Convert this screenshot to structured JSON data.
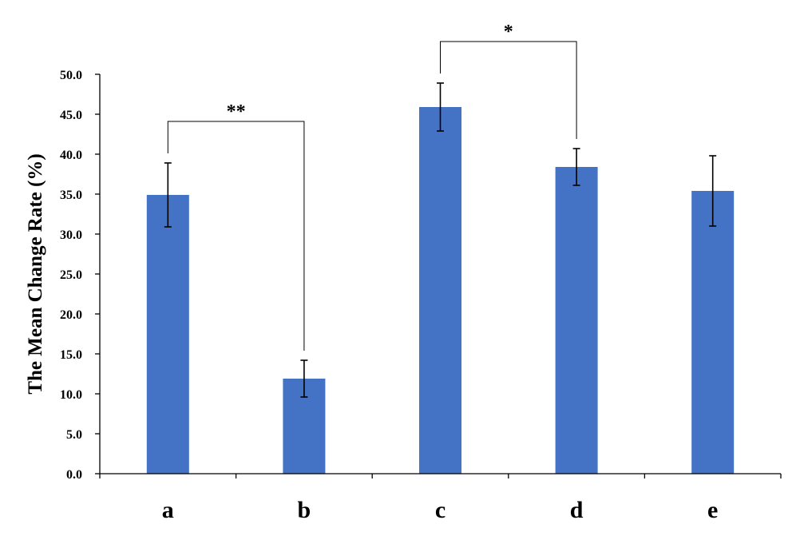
{
  "chart_data": {
    "type": "bar",
    "title": "",
    "xlabel": "",
    "ylabel": "The Mean Change Rate (%)",
    "categories": [
      "a",
      "b",
      "c",
      "d",
      "e"
    ],
    "values": [
      34.9,
      11.9,
      45.9,
      38.4,
      35.4
    ],
    "errors": [
      4.0,
      2.3,
      3.0,
      2.3,
      4.4
    ],
    "ylim": [
      0,
      50
    ],
    "yticks": [
      "0.0",
      "5.0",
      "10.0",
      "15.0",
      "20.0",
      "25.0",
      "30.0",
      "35.0",
      "40.0",
      "45.0",
      "50.0"
    ],
    "bar_color": "#4472C4",
    "grid": false,
    "legend": "none",
    "significance": [
      {
        "from": "a",
        "to": "b",
        "label": "**"
      },
      {
        "from": "c",
        "to": "d",
        "label": "*"
      }
    ]
  }
}
